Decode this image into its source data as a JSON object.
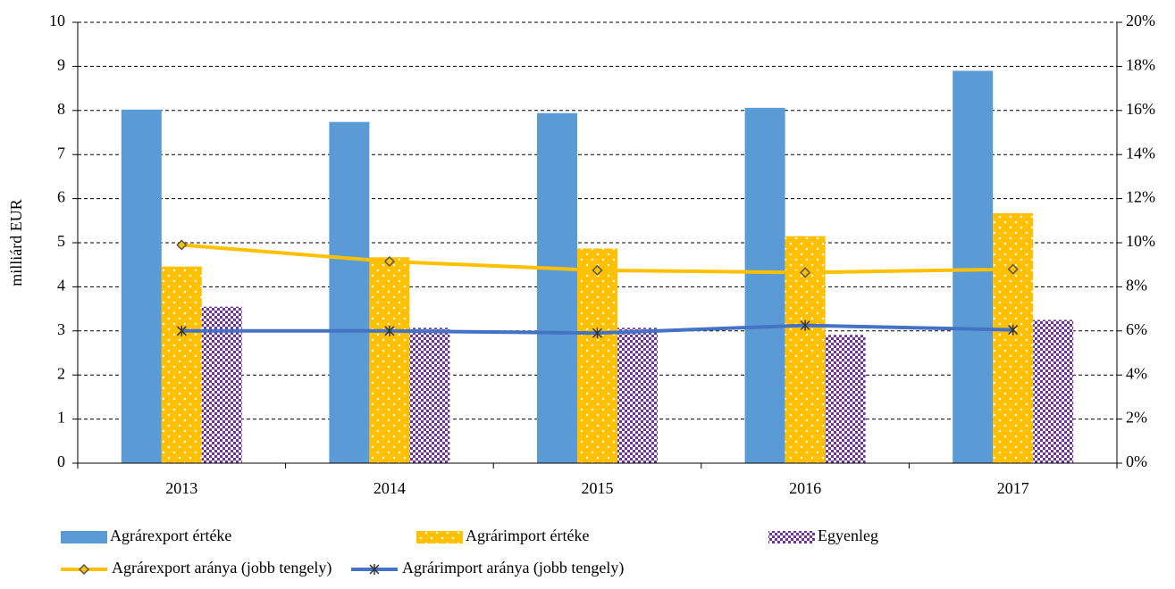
{
  "chart_data": {
    "type": "bar",
    "ylabel": "milliárd EUR",
    "categories": [
      "2013",
      "2014",
      "2015",
      "2016",
      "2017"
    ],
    "series": [
      {
        "name": "Agrárexport értéke",
        "color": "#5b9bd5",
        "values": [
          8.02,
          7.74,
          7.94,
          8.06,
          8.9
        ]
      },
      {
        "name": "Agrárimport értéke",
        "color": "#ffc000",
        "values": [
          4.46,
          4.67,
          4.87,
          5.15,
          5.67
        ]
      },
      {
        "name": "Egyenleg",
        "color": "#7030a0",
        "values": [
          3.55,
          3.07,
          3.07,
          2.91,
          3.25
        ]
      },
      {
        "name": "Agrárexport aránya (jobb tengely)",
        "type": "line",
        "axis": "y2",
        "color": "#ffc000",
        "values": [
          9.9,
          9.15,
          8.75,
          8.65,
          8.8
        ]
      },
      {
        "name": "Agrárimport aránya (jobb tengely)",
        "type": "line",
        "axis": "y2",
        "color": "#4472c4",
        "values": [
          6.0,
          6.0,
          5.9,
          6.25,
          6.05
        ]
      }
    ],
    "ylim": [
      0,
      10
    ],
    "yticks": [
      0,
      1,
      2,
      3,
      4,
      5,
      6,
      7,
      8,
      9,
      10
    ],
    "y2lim": [
      0,
      20
    ],
    "y2ticks": [
      {
        "value": 0,
        "label": "0%"
      },
      {
        "value": 2,
        "label": "2%"
      },
      {
        "value": 4,
        "label": "4%"
      },
      {
        "value": 6,
        "label": "6%"
      },
      {
        "value": 8,
        "label": "8%"
      },
      {
        "value": 10,
        "label": "10%"
      },
      {
        "value": 12,
        "label": "12%"
      },
      {
        "value": 14,
        "label": "14%"
      },
      {
        "value": 16,
        "label": "16%"
      },
      {
        "value": 18,
        "label": "18%"
      },
      {
        "value": 20,
        "label": "20%"
      }
    ],
    "grid": true,
    "legend": "bottom"
  }
}
